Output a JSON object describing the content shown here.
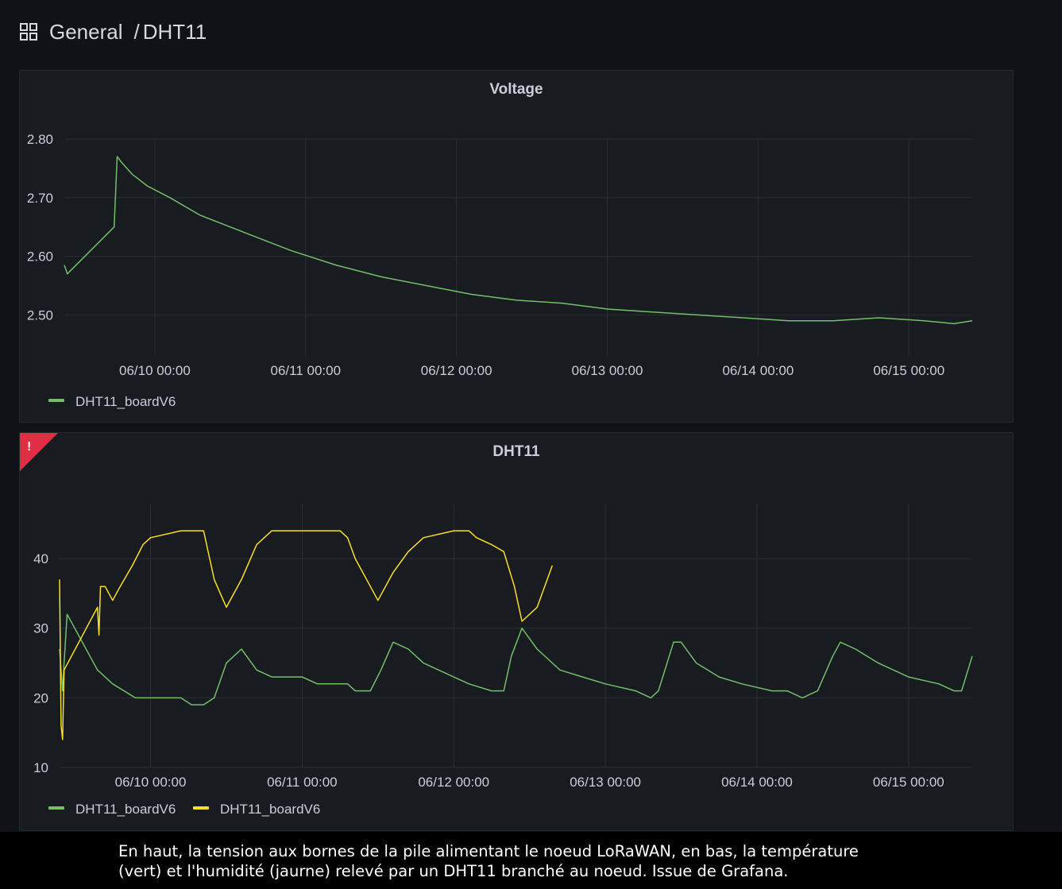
{
  "header": {
    "folder": "General",
    "separator": "/",
    "dashboard": "DHT11",
    "icon": "dashboard-grid-icon"
  },
  "colors": {
    "background": "#111217",
    "panel": "#181b1f",
    "green": "#73bf69",
    "yellow": "#fade2a",
    "alert": "#e02f44",
    "grid": "#2c2f34"
  },
  "caption": {
    "line1": "En haut, la tension aux bornes de la pile alimentant le noeud LoRaWAN, en bas, la température",
    "line2": "(vert) et l'humidité (jaurne) relevé par un DHT11 branché au noeud. Issue de Grafana."
  },
  "chart_data": [
    {
      "type": "line",
      "title": "Voltage",
      "x_tick_labels": [
        "06/10 00:00",
        "06/11 00:00",
        "06/12 00:00",
        "06/13 00:00",
        "06/14 00:00",
        "06/15 00:00"
      ],
      "y_tick_labels": [
        "2.80",
        "2.70",
        "2.60",
        "2.50"
      ],
      "xlim_days": [
        9.4,
        15.42
      ],
      "ylim": [
        2.43,
        2.8
      ],
      "grid": true,
      "legend_position": "bottom-left",
      "series": [
        {
          "name": "DHT11_boardV6",
          "color": "#73bf69",
          "x": [
            9.4,
            9.42,
            9.73,
            9.75,
            9.78,
            9.85,
            9.95,
            10.1,
            10.3,
            10.6,
            10.9,
            11.2,
            11.5,
            11.8,
            12.1,
            12.4,
            12.7,
            13.0,
            13.3,
            13.6,
            13.9,
            14.2,
            14.5,
            14.8,
            15.1,
            15.3,
            15.42
          ],
          "values": [
            2.585,
            2.57,
            2.65,
            2.77,
            2.76,
            2.74,
            2.72,
            2.7,
            2.67,
            2.64,
            2.61,
            2.585,
            2.565,
            2.55,
            2.535,
            2.525,
            2.52,
            2.51,
            2.505,
            2.5,
            2.495,
            2.49,
            2.49,
            2.495,
            2.49,
            2.485,
            2.49
          ]
        }
      ]
    },
    {
      "type": "line",
      "title": "DHT11",
      "x_tick_labels": [
        "06/10 00:00",
        "06/11 00:00",
        "06/12 00:00",
        "06/13 00:00",
        "06/14 00:00",
        "06/15 00:00"
      ],
      "y_tick_labels": [
        "40",
        "30",
        "20",
        "10"
      ],
      "xlim_days": [
        9.4,
        15.42
      ],
      "ylim": [
        10,
        48
      ],
      "grid": true,
      "legend_position": "bottom-left",
      "alert": true,
      "series": [
        {
          "name": "DHT11_boardV6",
          "color": "#73bf69",
          "x": [
            9.4,
            9.42,
            9.43,
            9.45,
            9.65,
            9.75,
            9.9,
            10.2,
            10.27,
            10.35,
            10.42,
            10.5,
            10.6,
            10.7,
            10.8,
            11.0,
            11.1,
            11.3,
            11.35,
            11.45,
            11.52,
            11.6,
            11.7,
            11.8,
            12.0,
            12.1,
            12.25,
            12.33,
            12.38,
            12.45,
            12.55,
            12.7,
            12.85,
            13.0,
            13.2,
            13.3,
            13.35,
            13.45,
            13.5,
            13.6,
            13.75,
            13.9,
            14.1,
            14.2,
            14.3,
            14.4,
            14.5,
            14.55,
            14.65,
            14.8,
            15.0,
            15.2,
            15.3,
            15.35,
            15.42
          ],
          "values": [
            27,
            21,
            25,
            32,
            24,
            22,
            20,
            20,
            19,
            19,
            20,
            25,
            27,
            24,
            23,
            23,
            22,
            22,
            21,
            21,
            24,
            28,
            27,
            25,
            23,
            22,
            21,
            21,
            26,
            30,
            27,
            24,
            23,
            22,
            21,
            20,
            21,
            28,
            28,
            25,
            23,
            22,
            21,
            21,
            20,
            21,
            26,
            28,
            27,
            25,
            23,
            22,
            21,
            21,
            26
          ]
        },
        {
          "name": "DHT11_boardV6",
          "color": "#fade2a",
          "x": [
            9.4,
            9.41,
            9.42,
            9.43,
            9.65,
            9.66,
            9.67,
            9.7,
            9.75,
            9.8,
            9.88,
            9.95,
            10.0,
            10.2,
            10.35,
            10.42,
            10.5,
            10.6,
            10.7,
            10.8,
            11.0,
            11.25,
            11.3,
            11.35,
            11.45,
            11.5,
            11.6,
            11.7,
            11.8,
            12.0,
            12.1,
            12.15,
            12.25,
            12.33,
            12.4,
            12.45,
            12.55,
            12.65
          ],
          "values": [
            37,
            16,
            14,
            24,
            33,
            29,
            36,
            36,
            34,
            36,
            39,
            42,
            43,
            44,
            44,
            37,
            33,
            37,
            42,
            44,
            44,
            44,
            43,
            40,
            36,
            34,
            38,
            41,
            43,
            44,
            44,
            43,
            42,
            41,
            36,
            31,
            33,
            39
          ]
        }
      ]
    }
  ],
  "legend_top": [
    "DHT11_boardV6"
  ],
  "legend_bottom": [
    "DHT11_boardV6",
    "DHT11_boardV6"
  ]
}
